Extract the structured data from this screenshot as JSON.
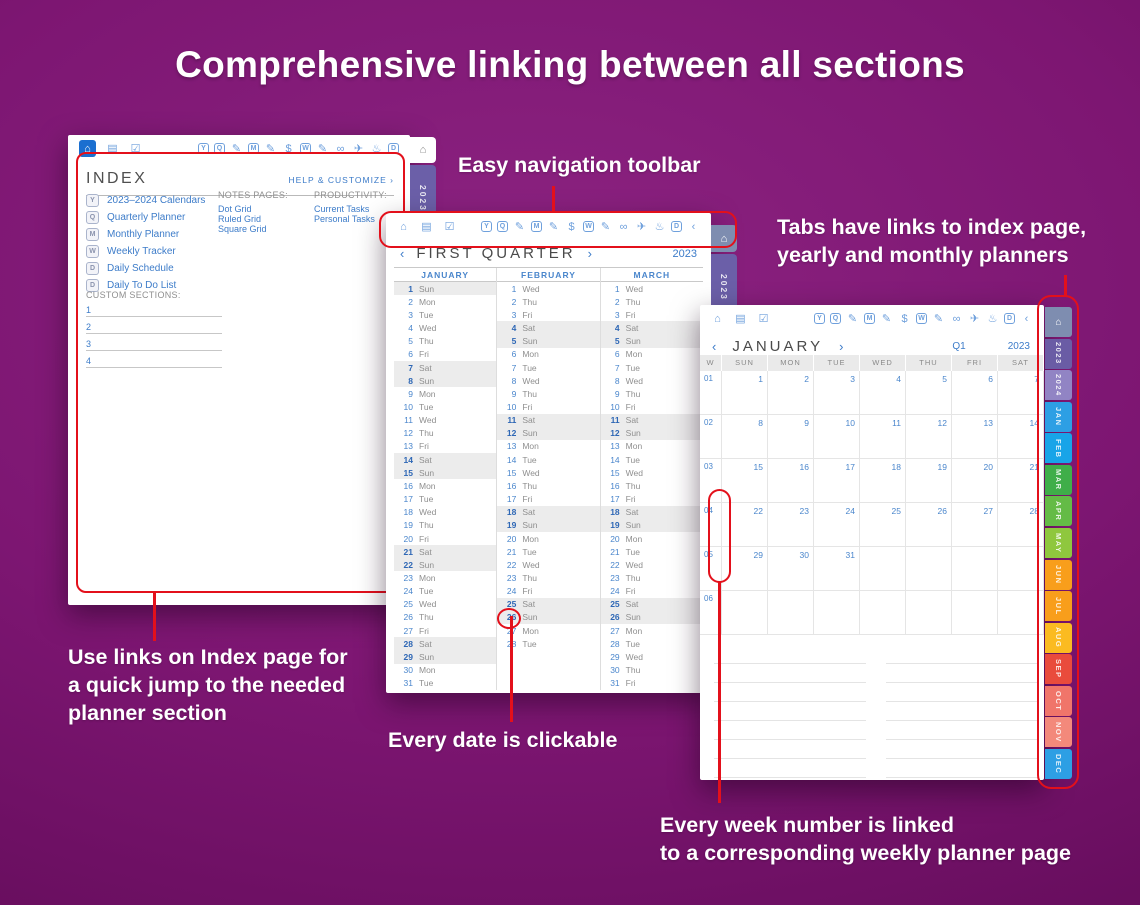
{
  "page_title": "Comprehensive linking between all sections",
  "colors": {
    "background_purple": "#7d1672",
    "annotation_red": "#E3101B",
    "link_blue": "#3D7CC9",
    "accent_blue_active": "#1B6FD0"
  },
  "annotations": {
    "toolbar": "Easy navigation toolbar",
    "tabs_line1": "Tabs have links to index page,",
    "tabs_line2": "yearly and monthly planners",
    "index_line1": "Use links on Index page for",
    "index_line2": "a quick jump to the needed",
    "index_line3": "planner section",
    "date": "Every date is clickable",
    "week_line1": "Every week number is linked",
    "week_line2": "to a corresponding weekly planner page"
  },
  "nav": {
    "prev": "‹",
    "next": "›"
  },
  "toolbar": {
    "left_icons": [
      {
        "name": "home-icon",
        "glyph": "⌂"
      },
      {
        "name": "notes-icon",
        "glyph": "▤"
      },
      {
        "name": "tasks-icon",
        "glyph": "☑"
      }
    ],
    "right_icons": [
      {
        "name": "yearly-planner-icon",
        "glyph": "Y",
        "box": true
      },
      {
        "name": "quarterly-planner-icon",
        "glyph": "Q",
        "box": true
      },
      {
        "name": "notes-pen-icon",
        "glyph": "✎"
      },
      {
        "name": "monthly-planner-icon",
        "glyph": "M",
        "box": true
      },
      {
        "name": "monthly-notes-icon",
        "glyph": "✎"
      },
      {
        "name": "finance-icon",
        "glyph": "$"
      },
      {
        "name": "weekly-planner-icon",
        "glyph": "W",
        "box": true
      },
      {
        "name": "weekly-notes-icon",
        "glyph": "✎"
      },
      {
        "name": "headphones-icon",
        "glyph": "∞"
      },
      {
        "name": "travel-icon",
        "glyph": "✈"
      },
      {
        "name": "celebration-icon",
        "glyph": "♨"
      },
      {
        "name": "daily-planner-icon",
        "glyph": "D",
        "box": true
      }
    ],
    "back_glyph": "‹"
  },
  "index_page": {
    "title": "INDEX",
    "help_link": "HELP & CUSTOMIZE ›",
    "sections": [
      {
        "icon": "Y",
        "label": "2023–2024 Calendars"
      },
      {
        "icon": "Q",
        "label": "Quarterly Planner"
      },
      {
        "icon": "M",
        "label": "Monthly Planner"
      },
      {
        "icon": "W",
        "label": "Weekly Tracker"
      },
      {
        "icon": "D",
        "label": "Daily Schedule"
      },
      {
        "icon": "D",
        "label": "Daily To Do List"
      }
    ],
    "notes_header": "NOTES PAGES:",
    "notes_links": [
      "Dot Grid",
      "Ruled Grid",
      "Square Grid"
    ],
    "productivity_header": "PRODUCTIVITY:",
    "productivity_links": [
      "Current Tasks",
      "Personal Tasks"
    ],
    "custom_header": "CUSTOM SECTIONS:",
    "custom_rows": [
      "1",
      "2",
      "3",
      "4"
    ],
    "side_tabs": [
      {
        "icon": "home",
        "color": "#FFFFFF",
        "icon_color": "#8a8a8a"
      },
      {
        "label": "2023",
        "color": "#6B5FA8"
      },
      {
        "label": "2024",
        "color": "#9184C2"
      }
    ]
  },
  "quarter_page": {
    "title": "FIRST QUARTER",
    "year": "2023",
    "dow_names": [
      "Sun",
      "Mon",
      "Tue",
      "Wed",
      "Thu",
      "Fri",
      "Sat"
    ],
    "months": [
      {
        "name": "JANUARY",
        "first_dow": 0,
        "days": 31
      },
      {
        "name": "FEBRUARY",
        "first_dow": 3,
        "days": 28
      },
      {
        "name": "MARCH",
        "first_dow": 3,
        "days": 31
      }
    ],
    "circled_date": {
      "month": "FEBRUARY",
      "day": 26
    },
    "side_tabs": [
      {
        "icon": "home",
        "color": "#7E8DB0",
        "icon_color": "#ffffff"
      },
      {
        "label": "2023",
        "color": "#6B5FA8"
      },
      {
        "label": "2024",
        "color": "#9184C2"
      }
    ]
  },
  "month_page": {
    "title": "JANUARY",
    "quarter": "Q1",
    "year": "2023",
    "headers": [
      "W",
      "SUN",
      "MON",
      "TUE",
      "WED",
      "THU",
      "FRI",
      "SAT"
    ],
    "weeks": [
      {
        "num": "01",
        "days": [
          "1",
          "2",
          "3",
          "4",
          "5",
          "6",
          "7"
        ]
      },
      {
        "num": "02",
        "days": [
          "8",
          "9",
          "10",
          "11",
          "12",
          "13",
          "14"
        ]
      },
      {
        "num": "03",
        "days": [
          "15",
          "16",
          "17",
          "18",
          "19",
          "20",
          "21"
        ]
      },
      {
        "num": "04",
        "days": [
          "22",
          "23",
          "24",
          "25",
          "26",
          "27",
          "28"
        ]
      },
      {
        "num": "05",
        "days": [
          "29",
          "30",
          "31",
          "",
          "",
          "",
          ""
        ]
      },
      {
        "num": "06",
        "days": [
          "",
          "",
          "",
          "",
          "",
          "",
          ""
        ]
      }
    ],
    "circled_weeks": [
      "04",
      "05"
    ],
    "side_tabs": [
      {
        "icon": "home",
        "color": "#7E8DB0",
        "icon_color": "#ffffff"
      },
      {
        "label": "2023",
        "color": "#6A5CA5"
      },
      {
        "label": "2024",
        "color": "#9184C4"
      },
      {
        "label": "JAN",
        "color": "#2D9FE4"
      },
      {
        "label": "FEB",
        "color": "#18A4E8"
      },
      {
        "label": "MAR",
        "color": "#3FAE49"
      },
      {
        "label": "APR",
        "color": "#64BB46"
      },
      {
        "label": "MAY",
        "color": "#8FC73E"
      },
      {
        "label": "JUN",
        "color": "#F89E1B"
      },
      {
        "label": "JUL",
        "color": "#F89E1B"
      },
      {
        "label": "AUG",
        "color": "#FBBB21"
      },
      {
        "label": "SEP",
        "color": "#E94B3C"
      },
      {
        "label": "OCT",
        "color": "#F0756A"
      },
      {
        "label": "NOV",
        "color": "#F3897B"
      },
      {
        "label": "DEC",
        "color": "#2D9FE4"
      }
    ]
  }
}
